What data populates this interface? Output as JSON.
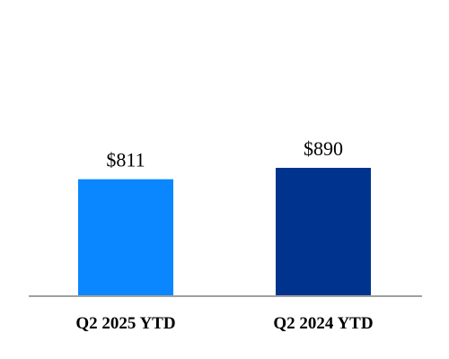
{
  "chart_data": {
    "type": "bar",
    "categories": [
      "Q2 2025 YTD",
      "Q2 2024 YTD"
    ],
    "values": [
      811,
      890
    ],
    "value_labels": [
      "$811",
      "$890"
    ],
    "bar_colors": [
      "#0a87ff",
      "#00338d"
    ],
    "axis_color": "#a0a0a0",
    "title": "",
    "xlabel": "",
    "ylabel": "",
    "ylim": [
      0,
      890
    ],
    "grid": false,
    "legend": "none"
  }
}
